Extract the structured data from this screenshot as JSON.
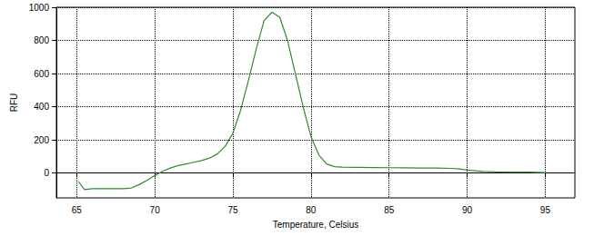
{
  "chart_data": {
    "type": "line",
    "xlabel": "Temperature, Celsius",
    "ylabel": "RFU",
    "x": [
      65.1,
      65.5,
      66,
      67,
      68,
      68.5,
      69,
      69.5,
      70,
      70.5,
      71,
      71.5,
      72,
      72.5,
      73,
      73.5,
      74,
      74.5,
      75,
      75.5,
      76,
      76.5,
      77,
      77.5,
      78,
      78.5,
      79,
      79.5,
      80,
      80.5,
      81,
      81.5,
      82,
      83,
      84,
      85,
      86,
      87,
      88,
      89,
      89.5,
      90,
      91,
      92,
      93,
      94,
      95
    ],
    "values": [
      -50,
      -100,
      -95,
      -95,
      -95,
      -90,
      -70,
      -45,
      -15,
      10,
      30,
      45,
      55,
      65,
      75,
      90,
      115,
      160,
      240,
      380,
      560,
      750,
      920,
      970,
      940,
      800,
      600,
      400,
      220,
      110,
      55,
      38,
      35,
      34,
      33,
      32,
      31,
      30,
      30,
      28,
      25,
      18,
      10,
      6,
      5,
      5,
      3
    ],
    "color": "#2e8b2e",
    "line_style": "solid",
    "xlim": [
      63.7,
      96.9
    ],
    "xticks": [
      65,
      70,
      75,
      80,
      85,
      90,
      95
    ],
    "ylim": [
      -150,
      1000
    ],
    "yticks": [
      0,
      200,
      400,
      600,
      800,
      1000
    ],
    "grid": true
  }
}
